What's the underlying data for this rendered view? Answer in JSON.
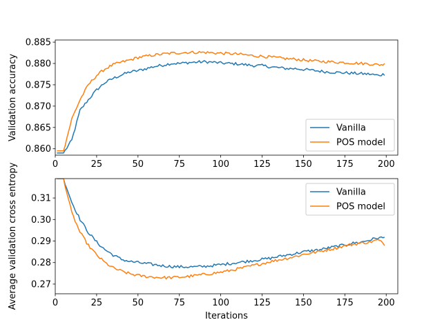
{
  "colors": {
    "vanilla": "#1f77b4",
    "pos": "#ff7f0e"
  },
  "chart_data": [
    {
      "type": "line",
      "xlabel": "",
      "ylabel": "Validation accuracy",
      "xlim": [
        0,
        207
      ],
      "ylim": [
        0.8585,
        0.8855
      ],
      "xticks": [
        0,
        25,
        50,
        75,
        100,
        125,
        150,
        175,
        200
      ],
      "yticks": [
        0.86,
        0.865,
        0.87,
        0.875,
        0.88,
        0.885
      ],
      "ytick_labels": [
        "0.860",
        "0.865",
        "0.870",
        "0.875",
        "0.880",
        "0.885"
      ],
      "legend": "bottom-right",
      "grid": false,
      "series": [
        {
          "name": "Vanilla",
          "color": "#1f77b4",
          "x": [
            5,
            10,
            15,
            20,
            25,
            30,
            35,
            40,
            45,
            50,
            55,
            60,
            65,
            70,
            75,
            80,
            85,
            90,
            95,
            100,
            105,
            110,
            115,
            120,
            125,
            130,
            135,
            140,
            145,
            150,
            155,
            160,
            165,
            170,
            175,
            180,
            185,
            190,
            195,
            199
          ],
          "y": [
            0.859,
            0.862,
            0.869,
            0.8715,
            0.8738,
            0.8755,
            0.8765,
            0.8773,
            0.878,
            0.8783,
            0.8788,
            0.8793,
            0.8796,
            0.88,
            0.88,
            0.8802,
            0.8803,
            0.8804,
            0.8803,
            0.8801,
            0.88,
            0.8799,
            0.8797,
            0.8795,
            0.8795,
            0.8792,
            0.879,
            0.8788,
            0.8788,
            0.8786,
            0.8784,
            0.8782,
            0.878,
            0.8779,
            0.8778,
            0.8777,
            0.8776,
            0.8775,
            0.8772,
            0.8775
          ]
        },
        {
          "name": "POS model",
          "color": "#ff7f0e",
          "x": [
            5,
            10,
            15,
            20,
            25,
            30,
            35,
            40,
            45,
            50,
            55,
            60,
            65,
            70,
            75,
            80,
            85,
            90,
            95,
            100,
            105,
            110,
            115,
            120,
            125,
            130,
            135,
            140,
            145,
            150,
            155,
            160,
            165,
            170,
            175,
            180,
            185,
            190,
            195,
            199
          ],
          "y": [
            0.8595,
            0.867,
            0.8715,
            0.875,
            0.8772,
            0.8787,
            0.8797,
            0.8803,
            0.8808,
            0.8814,
            0.8817,
            0.882,
            0.8822,
            0.8824,
            0.8825,
            0.8826,
            0.8826,
            0.8826,
            0.8825,
            0.8824,
            0.8823,
            0.8822,
            0.882,
            0.8818,
            0.8817,
            0.8815,
            0.8813,
            0.8811,
            0.881,
            0.8808,
            0.8806,
            0.8805,
            0.8804,
            0.8803,
            0.8802,
            0.8801,
            0.88,
            0.8799,
            0.8797,
            0.8798
          ]
        }
      ]
    },
    {
      "type": "line",
      "xlabel": "Iterations",
      "ylabel": "Average validation cross entropy",
      "xlim": [
        0,
        207
      ],
      "ylim": [
        0.2655,
        0.319
      ],
      "xticks": [
        0,
        25,
        50,
        75,
        100,
        125,
        150,
        175,
        200
      ],
      "yticks": [
        0.27,
        0.28,
        0.29,
        0.3,
        0.31
      ],
      "ytick_labels": [
        "0.27",
        "0.28",
        "0.29",
        "0.30",
        "0.31"
      ],
      "legend": "top-right",
      "grid": false,
      "series": [
        {
          "name": "Vanilla",
          "color": "#1f77b4",
          "x": [
            5,
            10,
            15,
            20,
            25,
            30,
            35,
            40,
            45,
            50,
            55,
            60,
            65,
            70,
            75,
            80,
            85,
            90,
            95,
            100,
            105,
            110,
            115,
            120,
            125,
            130,
            135,
            140,
            145,
            150,
            155,
            160,
            165,
            170,
            175,
            180,
            185,
            190,
            195,
            199
          ],
          "y": [
            0.319,
            0.308,
            0.3,
            0.294,
            0.2895,
            0.286,
            0.2835,
            0.2815,
            0.2805,
            0.28,
            0.2795,
            0.279,
            0.2785,
            0.2782,
            0.278,
            0.278,
            0.278,
            0.2782,
            0.2786,
            0.279,
            0.2795,
            0.28,
            0.2805,
            0.281,
            0.2815,
            0.282,
            0.2828,
            0.2835,
            0.2842,
            0.285,
            0.2855,
            0.286,
            0.2868,
            0.2875,
            0.2882,
            0.289,
            0.2895,
            0.2905,
            0.2915,
            0.2915
          ]
        },
        {
          "name": "POS model",
          "color": "#ff7f0e",
          "x": [
            5,
            10,
            15,
            20,
            25,
            30,
            35,
            40,
            45,
            50,
            55,
            60,
            65,
            70,
            75,
            80,
            85,
            90,
            95,
            100,
            105,
            110,
            115,
            120,
            125,
            130,
            135,
            140,
            145,
            150,
            155,
            160,
            165,
            170,
            175,
            180,
            185,
            190,
            195,
            199
          ],
          "y": [
            0.319,
            0.303,
            0.294,
            0.288,
            0.2835,
            0.28,
            0.2775,
            0.276,
            0.2748,
            0.274,
            0.2735,
            0.2732,
            0.273,
            0.273,
            0.2732,
            0.2735,
            0.274,
            0.2745,
            0.275,
            0.2755,
            0.2762,
            0.277,
            0.2778,
            0.2787,
            0.2795,
            0.2805,
            0.2812,
            0.282,
            0.2828,
            0.2838,
            0.2845,
            0.2852,
            0.286,
            0.2868,
            0.2878,
            0.2885,
            0.289,
            0.2895,
            0.2905,
            0.2885
          ]
        }
      ]
    }
  ]
}
